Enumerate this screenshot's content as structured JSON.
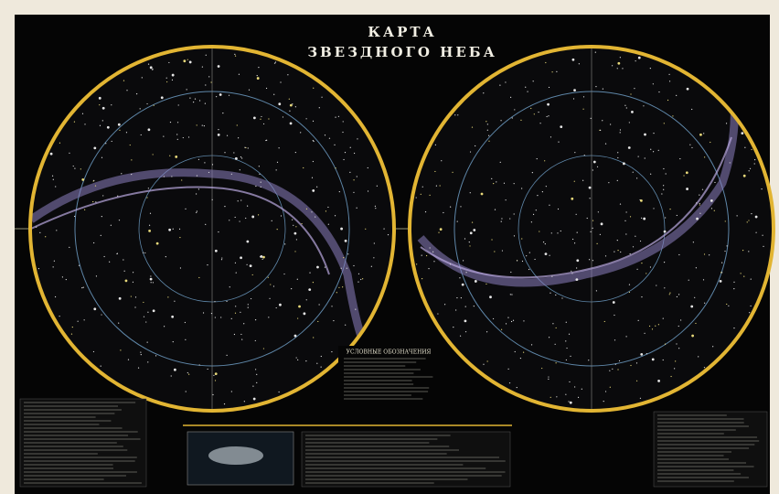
{
  "header": {
    "title_line1": "КАРТА",
    "title_line2": "ЗВЕЗДНОГО НЕБА"
  },
  "legend": {
    "title": "УСЛОВНЫЕ ОБОЗНАЧЕНИЯ"
  }
}
